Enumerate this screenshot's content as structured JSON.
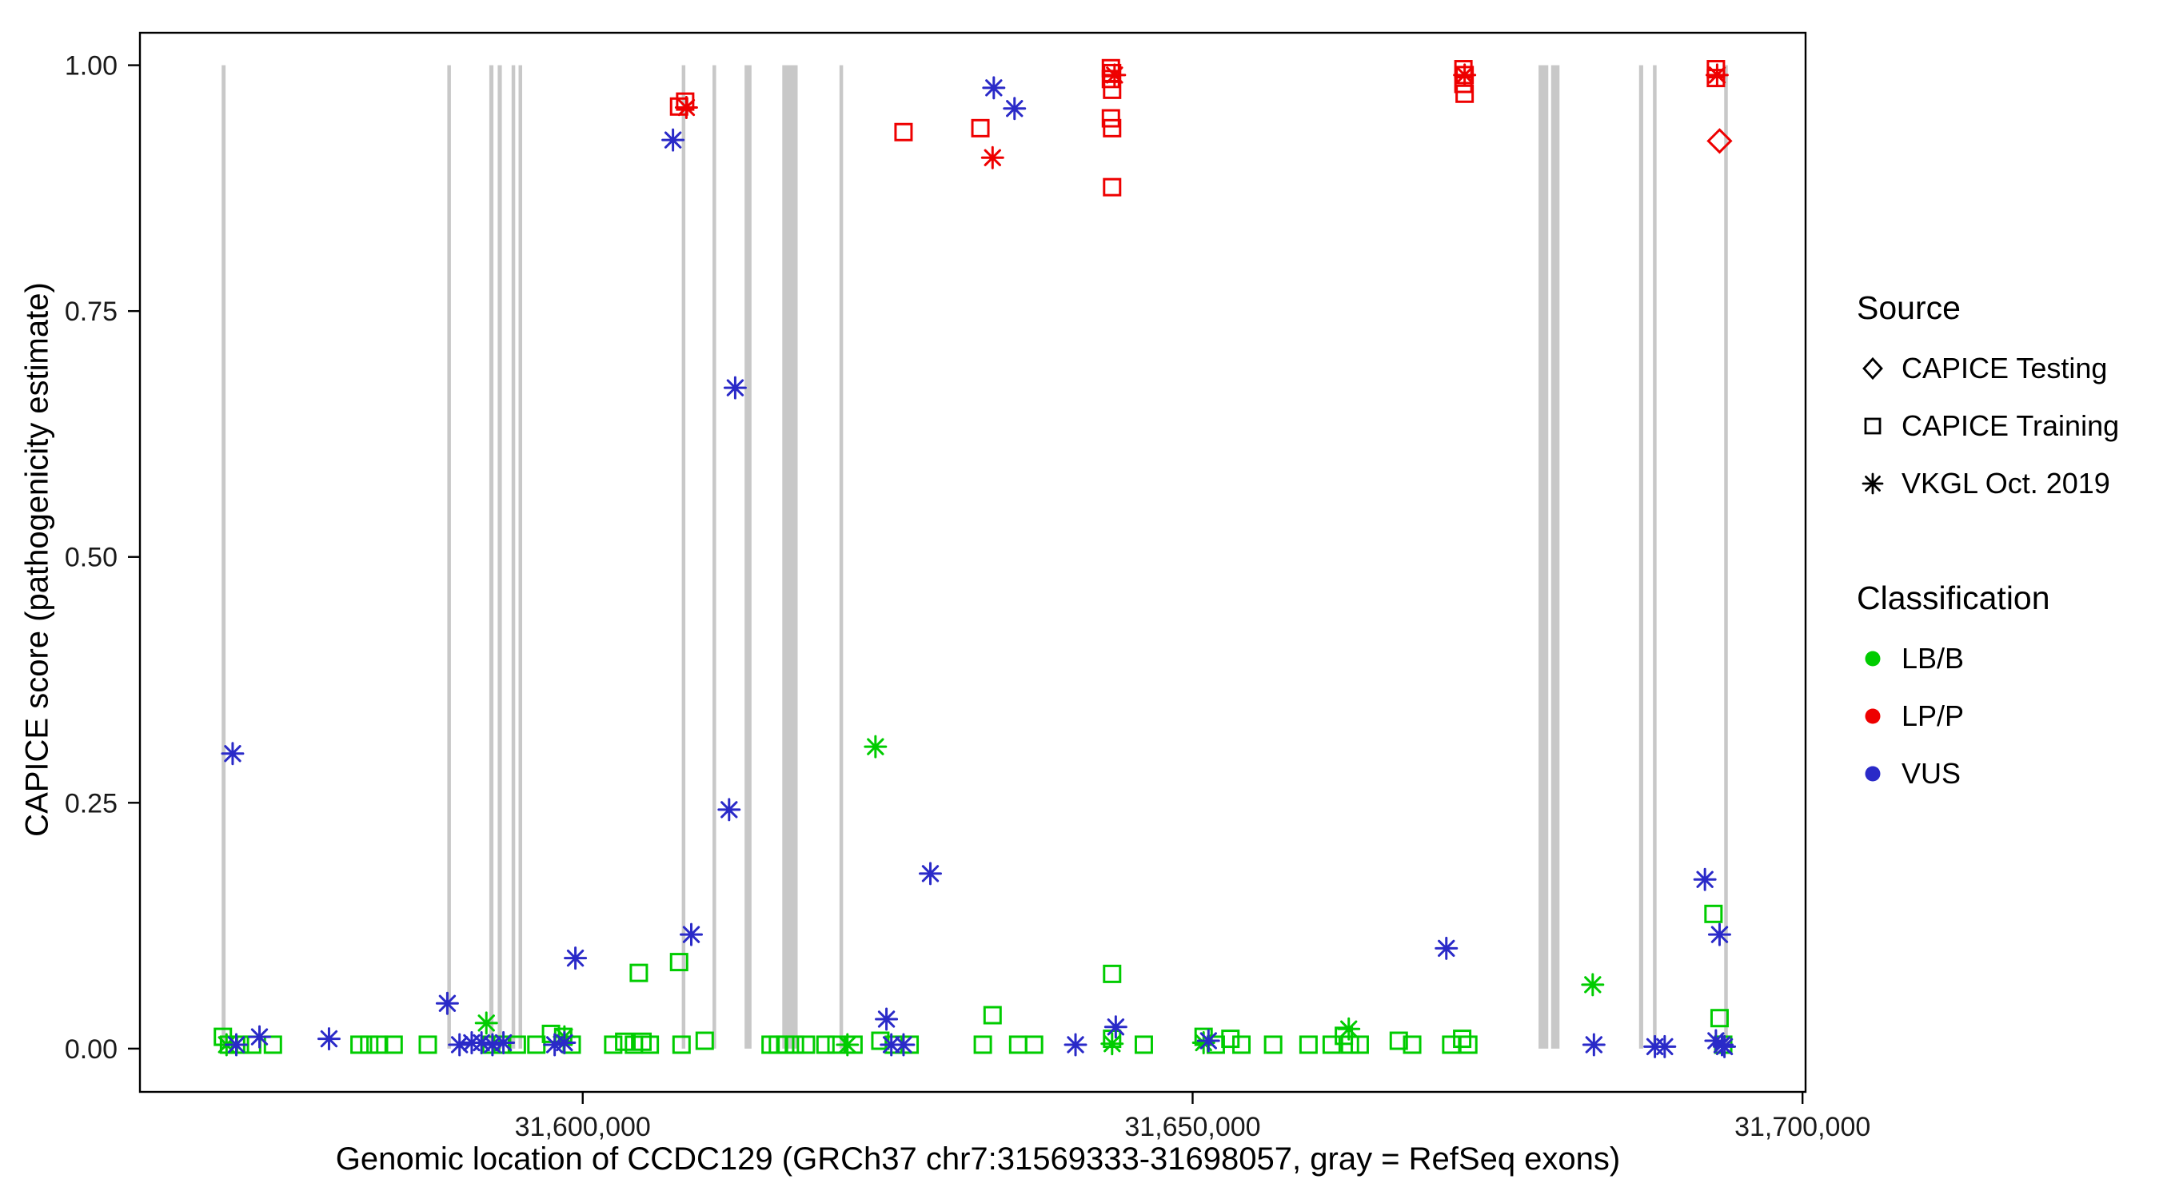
{
  "legend": {
    "source": {
      "title": "Source",
      "items": [
        {
          "label": "CAPICE Testing",
          "glyph": "diamond"
        },
        {
          "label": "CAPICE Training",
          "glyph": "square"
        },
        {
          "label": "VKGL Oct. 2019",
          "glyph": "asterisk"
        }
      ]
    },
    "classification": {
      "title": "Classification",
      "items": [
        {
          "label": "LB/B",
          "color": "#00CC00"
        },
        {
          "label": "LP/P",
          "color": "#EE0000"
        },
        {
          "label": "VUS",
          "color": "#2A2AC8"
        }
      ]
    }
  },
  "chart_data": {
    "type": "scatter",
    "title": "",
    "xlabel": "Genomic location of CCDC129 (GRCh37 chr7:31569333-31698057, gray = RefSeq exons)",
    "ylabel": "CAPICE score (pathogenicity estimate)",
    "xlim": [
      31563700,
      31700250
    ],
    "ylim": [
      -0.044,
      1.033
    ],
    "grid": false,
    "legend_position": "right",
    "exon_color": "#C8C8C8",
    "xticks": [
      {
        "value": 31600000,
        "label": "31,600,000"
      },
      {
        "value": 31650000,
        "label": "31,650,000"
      },
      {
        "value": 31700000,
        "label": "31,700,000"
      }
    ],
    "yticks": [
      {
        "value": 0.0,
        "label": "0.00"
      },
      {
        "value": 0.25,
        "label": "0.25"
      },
      {
        "value": 0.5,
        "label": "0.50"
      },
      {
        "value": 0.75,
        "label": "0.75"
      },
      {
        "value": 1.0,
        "label": "1.00"
      }
    ],
    "exons": [
      [
        31570400,
        31570720
      ],
      [
        31588900,
        31589130
      ],
      [
        31592340,
        31592680
      ],
      [
        31593030,
        31593370
      ],
      [
        31594170,
        31594400
      ],
      [
        31594740,
        31594970
      ],
      [
        31608120,
        31608350
      ],
      [
        31610640,
        31610870
      ],
      [
        31613270,
        31613840
      ],
      [
        31616360,
        31617620
      ],
      [
        31621050,
        31621280
      ],
      [
        31678360,
        31679160
      ],
      [
        31679390,
        31680080
      ],
      [
        31686600,
        31686940
      ],
      [
        31687740,
        31687970
      ],
      [
        31693580,
        31693810
      ]
    ],
    "series": [
      {
        "name": "CAPICE Testing / LP/P",
        "source": "CAPICE Testing",
        "classification": "LP/P",
        "shape": "diamond",
        "color": "#EE0000",
        "points": [
          [
            31693200,
            0.923
          ]
        ]
      },
      {
        "name": "CAPICE Training / LB/B",
        "source": "CAPICE Training",
        "classification": "LB/B",
        "shape": "square",
        "color": "#00CC00",
        "points": [
          [
            31570500,
            0.012
          ],
          [
            31571000,
            0.004
          ],
          [
            31571900,
            0.004
          ],
          [
            31572900,
            0.004
          ],
          [
            31574600,
            0.004
          ],
          [
            31581700,
            0.004
          ],
          [
            31582500,
            0.004
          ],
          [
            31583300,
            0.004
          ],
          [
            31584500,
            0.004
          ],
          [
            31587300,
            0.004
          ],
          [
            31592500,
            0.004
          ],
          [
            31593400,
            0.004
          ],
          [
            31594600,
            0.004
          ],
          [
            31596200,
            0.004
          ],
          [
            31597400,
            0.015
          ],
          [
            31598400,
            0.012
          ],
          [
            31599100,
            0.004
          ],
          [
            31602500,
            0.004
          ],
          [
            31603400,
            0.007
          ],
          [
            31604200,
            0.004
          ],
          [
            31604900,
            0.007
          ],
          [
            31605500,
            0.004
          ],
          [
            31604600,
            0.077
          ],
          [
            31607900,
            0.088
          ],
          [
            31608100,
            0.004
          ],
          [
            31610000,
            0.008
          ],
          [
            31615400,
            0.004
          ],
          [
            31616000,
            0.004
          ],
          [
            31616600,
            0.004
          ],
          [
            31617400,
            0.004
          ],
          [
            31618300,
            0.004
          ],
          [
            31619900,
            0.004
          ],
          [
            31620800,
            0.004
          ],
          [
            31622200,
            0.004
          ],
          [
            31624400,
            0.008
          ],
          [
            31625500,
            0.004
          ],
          [
            31626800,
            0.004
          ],
          [
            31632800,
            0.004
          ],
          [
            31633600,
            0.034
          ],
          [
            31635700,
            0.004
          ],
          [
            31637000,
            0.004
          ],
          [
            31643400,
            0.076
          ],
          [
            31643400,
            0.01
          ],
          [
            31646000,
            0.004
          ],
          [
            31650900,
            0.012
          ],
          [
            31651900,
            0.004
          ],
          [
            31653100,
            0.01
          ],
          [
            31654000,
            0.004
          ],
          [
            31656600,
            0.004
          ],
          [
            31659500,
            0.004
          ],
          [
            31661400,
            0.004
          ],
          [
            31662400,
            0.013
          ],
          [
            31662900,
            0.004
          ],
          [
            31663700,
            0.004
          ],
          [
            31666900,
            0.008
          ],
          [
            31668000,
            0.004
          ],
          [
            31671200,
            0.004
          ],
          [
            31672100,
            0.01
          ],
          [
            31672600,
            0.004
          ],
          [
            31692700,
            0.137
          ],
          [
            31693200,
            0.031
          ],
          [
            31693500,
            0.004
          ]
        ]
      },
      {
        "name": "CAPICE Training / LP/P",
        "source": "CAPICE Training",
        "classification": "LP/P",
        "shape": "square",
        "color": "#EE0000",
        "points": [
          [
            31607900,
            0.958
          ],
          [
            31608400,
            0.963
          ],
          [
            31626300,
            0.932
          ],
          [
            31632600,
            0.936
          ],
          [
            31643300,
            0.997
          ],
          [
            31643400,
            0.992
          ],
          [
            31643300,
            0.986
          ],
          [
            31643400,
            0.975
          ],
          [
            31643300,
            0.946
          ],
          [
            31643400,
            0.936
          ],
          [
            31643400,
            0.876
          ],
          [
            31672200,
            0.996
          ],
          [
            31672300,
            0.99
          ],
          [
            31672200,
            0.981
          ],
          [
            31672300,
            0.971
          ],
          [
            31692900,
            0.996
          ],
          [
            31692900,
            0.987
          ]
        ]
      },
      {
        "name": "VKGL Oct. 2019 / LB/B",
        "source": "VKGL Oct. 2019",
        "classification": "LB/B",
        "shape": "asterisk",
        "color": "#00CC00",
        "points": [
          [
            31570800,
            0.004
          ],
          [
            31592100,
            0.026
          ],
          [
            31598500,
            0.012
          ],
          [
            31621700,
            0.004
          ],
          [
            31624000,
            0.307
          ],
          [
            31643400,
            0.005
          ],
          [
            31650900,
            0.006
          ],
          [
            31662800,
            0.02
          ],
          [
            31682800,
            0.065
          ]
        ]
      },
      {
        "name": "VKGL Oct. 2019 / LP/P",
        "source": "VKGL Oct. 2019",
        "classification": "LP/P",
        "shape": "asterisk",
        "color": "#EE0000",
        "points": [
          [
            31608500,
            0.957
          ],
          [
            31633600,
            0.906
          ],
          [
            31643600,
            0.99
          ],
          [
            31672300,
            0.99
          ],
          [
            31693000,
            0.99
          ]
        ]
      },
      {
        "name": "VKGL Oct. 2019 / VUS",
        "source": "VKGL Oct. 2019",
        "classification": "VUS",
        "shape": "asterisk",
        "color": "#2A2AC8",
        "points": [
          [
            31571300,
            0.3
          ],
          [
            31571600,
            0.004
          ],
          [
            31573500,
            0.012
          ],
          [
            31579200,
            0.01
          ],
          [
            31588900,
            0.046
          ],
          [
            31589900,
            0.004
          ],
          [
            31590900,
            0.006
          ],
          [
            31591700,
            0.006
          ],
          [
            31592600,
            0.004
          ],
          [
            31593500,
            0.006
          ],
          [
            31597700,
            0.004
          ],
          [
            31598500,
            0.006
          ],
          [
            31599400,
            0.092
          ],
          [
            31607400,
            0.924
          ],
          [
            31608900,
            0.116
          ],
          [
            31612000,
            0.243
          ],
          [
            31612500,
            0.672
          ],
          [
            31624900,
            0.03
          ],
          [
            31625300,
            0.004
          ],
          [
            31626300,
            0.004
          ],
          [
            31628500,
            0.178
          ],
          [
            31633700,
            0.977
          ],
          [
            31635400,
            0.956
          ],
          [
            31640400,
            0.004
          ],
          [
            31643700,
            0.022
          ],
          [
            31651300,
            0.008
          ],
          [
            31670800,
            0.102
          ],
          [
            31682900,
            0.004
          ],
          [
            31687900,
            0.002
          ],
          [
            31688700,
            0.002
          ],
          [
            31692000,
            0.172
          ],
          [
            31692900,
            0.008
          ],
          [
            31693200,
            0.116
          ],
          [
            31693400,
            0.004
          ],
          [
            31693600,
            0.002
          ]
        ]
      }
    ]
  }
}
